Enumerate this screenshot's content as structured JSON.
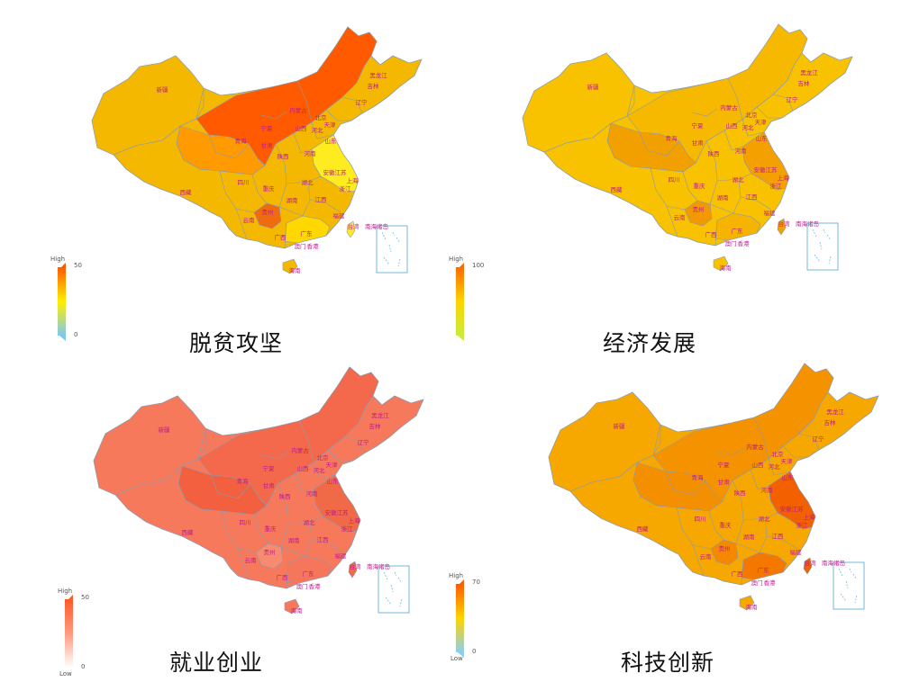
{
  "panels": [
    {
      "title": "脱贫攻坚",
      "legend": {
        "high_label": "High",
        "low_label": "",
        "max": "50",
        "min": "0",
        "gradient": [
          "#ff5a00",
          "#ffef00",
          "#7ec8f0"
        ]
      },
      "colors": {
        "base": "#f4b800",
        "north": "#ff5a00",
        "west": "#ff9a00",
        "south": "#ffd800",
        "east": "#ffec20",
        "accent": "#f06a10"
      }
    },
    {
      "title": "经济发展",
      "legend": {
        "high_label": "High",
        "low_label": "",
        "max": "100",
        "min": "",
        "gradient": [
          "#ff6a00",
          "#ffd400",
          "#c8ec3c"
        ]
      },
      "colors": {
        "base": "#f8c200",
        "north": "#f7b800",
        "west": "#f2a000",
        "south": "#f6b400",
        "east": "#f4a000",
        "accent": "#f29800"
      }
    },
    {
      "title": "就业创业",
      "legend": {
        "high_label": "High",
        "low_label": "Low",
        "max": "50",
        "min": "0",
        "gradient": [
          "#ff5a28",
          "#ff9a80",
          "#ffffff"
        ]
      },
      "colors": {
        "base": "#f7795c",
        "north": "#f4694b",
        "west": "#f2603f",
        "south": "#f6765b",
        "east": "#f06a48",
        "accent": "#f88a70"
      }
    },
    {
      "title": "科技创新",
      "legend": {
        "high_label": "High",
        "low_label": "Low",
        "max": "70",
        "min": "0",
        "gradient": [
          "#ff5a00",
          "#ffd400",
          "#8ccfee"
        ]
      },
      "colors": {
        "base": "#f6a800",
        "north": "#f59200",
        "west": "#f49000",
        "south": "#f47800",
        "east": "#f26000",
        "accent": "#f68800"
      }
    }
  ],
  "region_labels": {
    "xinjiang": "新疆",
    "xizang": "西藏",
    "qinghai": "青海",
    "gansu": "甘肃",
    "neimenggu": "内蒙古",
    "ningxia": "宁夏",
    "shanxi": "山西",
    "hebei": "河北",
    "beijing": "北京",
    "tianjin": "天津",
    "liaoning": "辽宁",
    "jilin": "吉林",
    "heilongjiang": "黑龙江",
    "shandong": "山东",
    "henan": "河南",
    "shaanxi": "陕西",
    "sichuan": "四川",
    "chongqing": "重庆",
    "hubei": "湖北",
    "anhui": "安徽",
    "jiangsu": "江苏",
    "shanghai": "上海",
    "zhejiang": "浙江",
    "jiangxi": "江西",
    "hunan": "湖南",
    "guizhou": "贵州",
    "yunnan": "云南",
    "guangxi": "广西",
    "guangdong": "广东",
    "fujian": "福建",
    "taiwan": "台湾",
    "hainan": "海南",
    "aomen": "澳门",
    "xianggang": "香港",
    "nanhai": "南海诸岛"
  }
}
